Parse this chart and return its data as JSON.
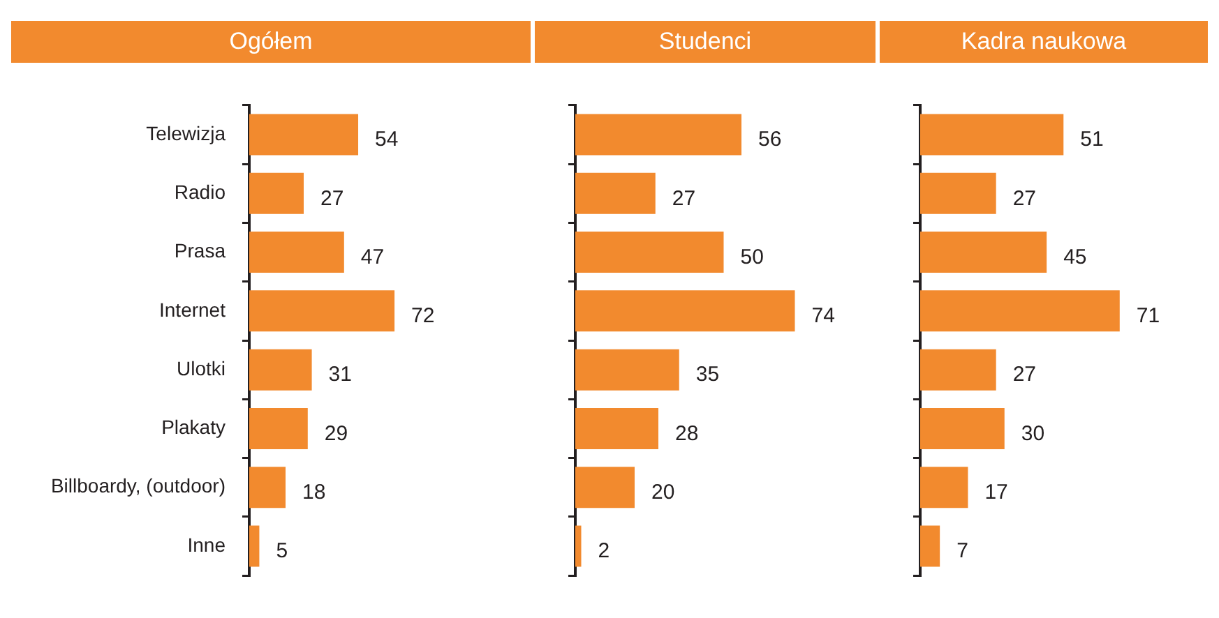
{
  "chart_data": [
    {
      "type": "bar",
      "orientation": "horizontal",
      "title": "Ogółem",
      "categories": [
        "Telewizja",
        "Radio",
        "Prasa",
        "Internet",
        "Ulotki",
        "Plakaty",
        "Billboardy, (outdoor)",
        "Inne"
      ],
      "values": [
        54,
        27,
        47,
        72,
        31,
        29,
        18,
        5
      ],
      "color": "#f28a2e",
      "data_labels": true
    },
    {
      "type": "bar",
      "orientation": "horizontal",
      "title": "Studenci",
      "categories": [
        null,
        null,
        null,
        null,
        null,
        null,
        null,
        null
      ],
      "values": [
        56,
        27,
        50,
        74,
        35,
        28,
        20,
        2
      ],
      "color": "#f28a2e",
      "data_labels": true
    },
    {
      "type": "bar",
      "orientation": "horizontal",
      "title": "Kadra naukowa",
      "categories": [
        null,
        null,
        null,
        null,
        null,
        null,
        null,
        null
      ],
      "values": [
        51,
        27,
        45,
        71,
        27,
        30,
        17,
        7
      ],
      "color": "#f28a2e",
      "data_labels": true
    }
  ]
}
